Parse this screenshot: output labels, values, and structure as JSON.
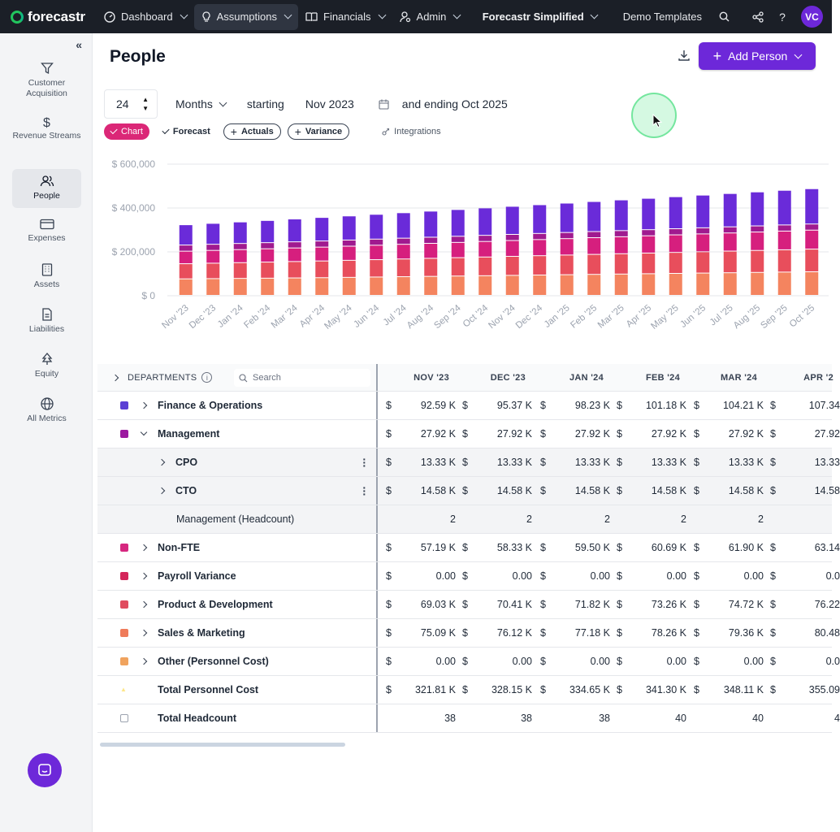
{
  "nav": {
    "logo": "forecastr",
    "items": [
      {
        "label": "Dashboard",
        "icon": "gauge-icon"
      },
      {
        "label": "Assumptions",
        "icon": "lightbulb-icon"
      },
      {
        "label": "Financials",
        "icon": "book-icon"
      },
      {
        "label": "Admin",
        "icon": "user-gear-icon"
      }
    ],
    "workspace": "Forecastr Simplified",
    "demo": "Demo Templates",
    "avatar": "VC"
  },
  "sidebar": [
    {
      "label": "Customer Acquisition",
      "icon": "funnel-icon"
    },
    {
      "label": "Revenue Streams",
      "icon": "dollar-icon"
    },
    {
      "label": "People",
      "icon": "people-icon",
      "active": true
    },
    {
      "label": "Expenses",
      "icon": "card-icon"
    },
    {
      "label": "Assets",
      "icon": "building-icon"
    },
    {
      "label": "Liabilities",
      "icon": "document-icon"
    },
    {
      "label": "Equity",
      "icon": "tree-icon"
    },
    {
      "label": "All Metrics",
      "icon": "globe-icon"
    }
  ],
  "page": {
    "title": "People",
    "add_label": "Add Person"
  },
  "controls": {
    "duration": "24",
    "unit": "Months",
    "starting_label": "starting",
    "start": "Nov 2023",
    "ending": "and ending Oct 2025"
  },
  "toggles": {
    "chart": "Chart",
    "forecast": "Forecast",
    "actuals": "Actuals",
    "variance": "Variance",
    "integrations": "Integrations"
  },
  "chart_data": {
    "type": "bar",
    "stacked": true,
    "y_tick_labels": [
      "$ 600,000",
      "$ 400,000",
      "$ 200,000",
      "$ 0"
    ],
    "ylim": [
      0,
      600000
    ],
    "categories": [
      "Nov '23",
      "Dec '23",
      "Jan '24",
      "Feb '24",
      "Mar '24",
      "Apr '24",
      "May '24",
      "Jun '24",
      "Jul '24",
      "Aug '24",
      "Sep '24",
      "Oct '24",
      "Nov '24",
      "Dec '24",
      "Jan '25",
      "Feb '25",
      "Mar '25",
      "Apr '25",
      "May '25",
      "Jun '25",
      "Jul '25",
      "Aug '25",
      "Sep '25",
      "Oct '25"
    ],
    "series": [
      {
        "name": "Sales & Marketing",
        "color": "#f4845f",
        "values": [
          75090,
          76120,
          77180,
          78260,
          79360,
          80480,
          82000,
          83500,
          85000,
          86500,
          88000,
          89500,
          91000,
          92500,
          94000,
          95500,
          97000,
          98500,
          100000,
          101500,
          103000,
          104500,
          106000,
          107500
        ]
      },
      {
        "name": "Product & Development",
        "color": "#e84e5c",
        "values": [
          69030,
          70410,
          71820,
          73260,
          74720,
          76220,
          77700,
          79200,
          80700,
          82200,
          83700,
          85200,
          86700,
          88200,
          89700,
          91200,
          92700,
          94200,
          95700,
          97200,
          98700,
          100200,
          101700,
          103200
        ]
      },
      {
        "name": "Non-FTE",
        "color": "#d61f7e",
        "values": [
          57190,
          58330,
          59500,
          60690,
          61900,
          63140,
          64400,
          65700,
          67000,
          68300,
          69600,
          70900,
          72200,
          73500,
          74800,
          76100,
          77400,
          78700,
          80000,
          81300,
          82600,
          83900,
          85200,
          86500
        ]
      },
      {
        "name": "Management",
        "color": "#a01a8f",
        "values": [
          27920,
          27920,
          27920,
          27920,
          27920,
          27920,
          27920,
          27920,
          27920,
          27920,
          27920,
          27920,
          27920,
          27920,
          27920,
          27920,
          27920,
          27920,
          27920,
          27920,
          27920,
          27920,
          27920,
          27920
        ]
      },
      {
        "name": "Finance & Operations",
        "color": "#6a2bd9",
        "values": [
          92590,
          95370,
          98230,
          101180,
          104210,
          107340,
          110000,
          113000,
          116000,
          119000,
          122000,
          125000,
          128000,
          131000,
          134000,
          137000,
          140000,
          143000,
          146000,
          149000,
          152000,
          155000,
          158000,
          161000
        ]
      }
    ]
  },
  "table": {
    "departments_label": "DEPARTMENTS",
    "search_placeholder": "Search",
    "months": [
      "NOV '23",
      "DEC '23",
      "JAN '24",
      "FEB '24",
      "MAR '24",
      "APR '2"
    ],
    "rows": [
      {
        "name": "Finance & Operations",
        "color": "#5b3fd4",
        "kind": "dept",
        "values": [
          "92.59 K",
          "95.37 K",
          "98.23 K",
          "101.18 K",
          "104.21 K",
          "107.34"
        ]
      },
      {
        "name": "Management",
        "color": "#9c1aa0",
        "kind": "dept-open",
        "values": [
          "27.92 K",
          "27.92 K",
          "27.92 K",
          "27.92 K",
          "27.92 K",
          "27.92"
        ]
      },
      {
        "name": "CPO",
        "kind": "sub",
        "values": [
          "13.33 K",
          "13.33 K",
          "13.33 K",
          "13.33 K",
          "13.33 K",
          "13.33"
        ]
      },
      {
        "name": "CTO",
        "kind": "sub",
        "values": [
          "14.58 K",
          "14.58 K",
          "14.58 K",
          "14.58 K",
          "14.58 K",
          "14.58"
        ]
      },
      {
        "name": "Management (Headcount)",
        "kind": "headcount",
        "values": [
          "2",
          "2",
          "2",
          "2",
          "2",
          ""
        ]
      },
      {
        "name": "Non-FTE",
        "color": "#d6277f",
        "kind": "dept",
        "values": [
          "57.19 K",
          "58.33 K",
          "59.50 K",
          "60.69 K",
          "61.90 K",
          "63.14"
        ]
      },
      {
        "name": "Payroll Variance",
        "color": "#d4265a",
        "kind": "dept",
        "values": [
          "0.00",
          "0.00",
          "0.00",
          "0.00",
          "0.00",
          "0.0"
        ]
      },
      {
        "name": "Product & Development",
        "color": "#e04c5f",
        "kind": "dept",
        "values": [
          "69.03 K",
          "70.41 K",
          "71.82 K",
          "73.26 K",
          "74.72 K",
          "76.22"
        ]
      },
      {
        "name": "Sales & Marketing",
        "color": "#ef7b5a",
        "kind": "dept",
        "values": [
          "75.09 K",
          "76.12 K",
          "77.18 K",
          "78.26 K",
          "79.36 K",
          "80.48"
        ]
      },
      {
        "name": "Other (Personnel Cost)",
        "color": "#f0a35e",
        "kind": "dept",
        "values": [
          "0.00",
          "0.00",
          "0.00",
          "0.00",
          "0.00",
          "0.0"
        ]
      },
      {
        "name": "Total Personnel Cost",
        "kind": "total",
        "values": [
          "321.81 K",
          "328.15 K",
          "334.65 K",
          "341.30 K",
          "348.11 K",
          "355.09"
        ]
      },
      {
        "name": "Total Headcount",
        "kind": "total-hc",
        "values": [
          "38",
          "38",
          "38",
          "40",
          "40",
          "4"
        ]
      }
    ],
    "currency": "$"
  }
}
